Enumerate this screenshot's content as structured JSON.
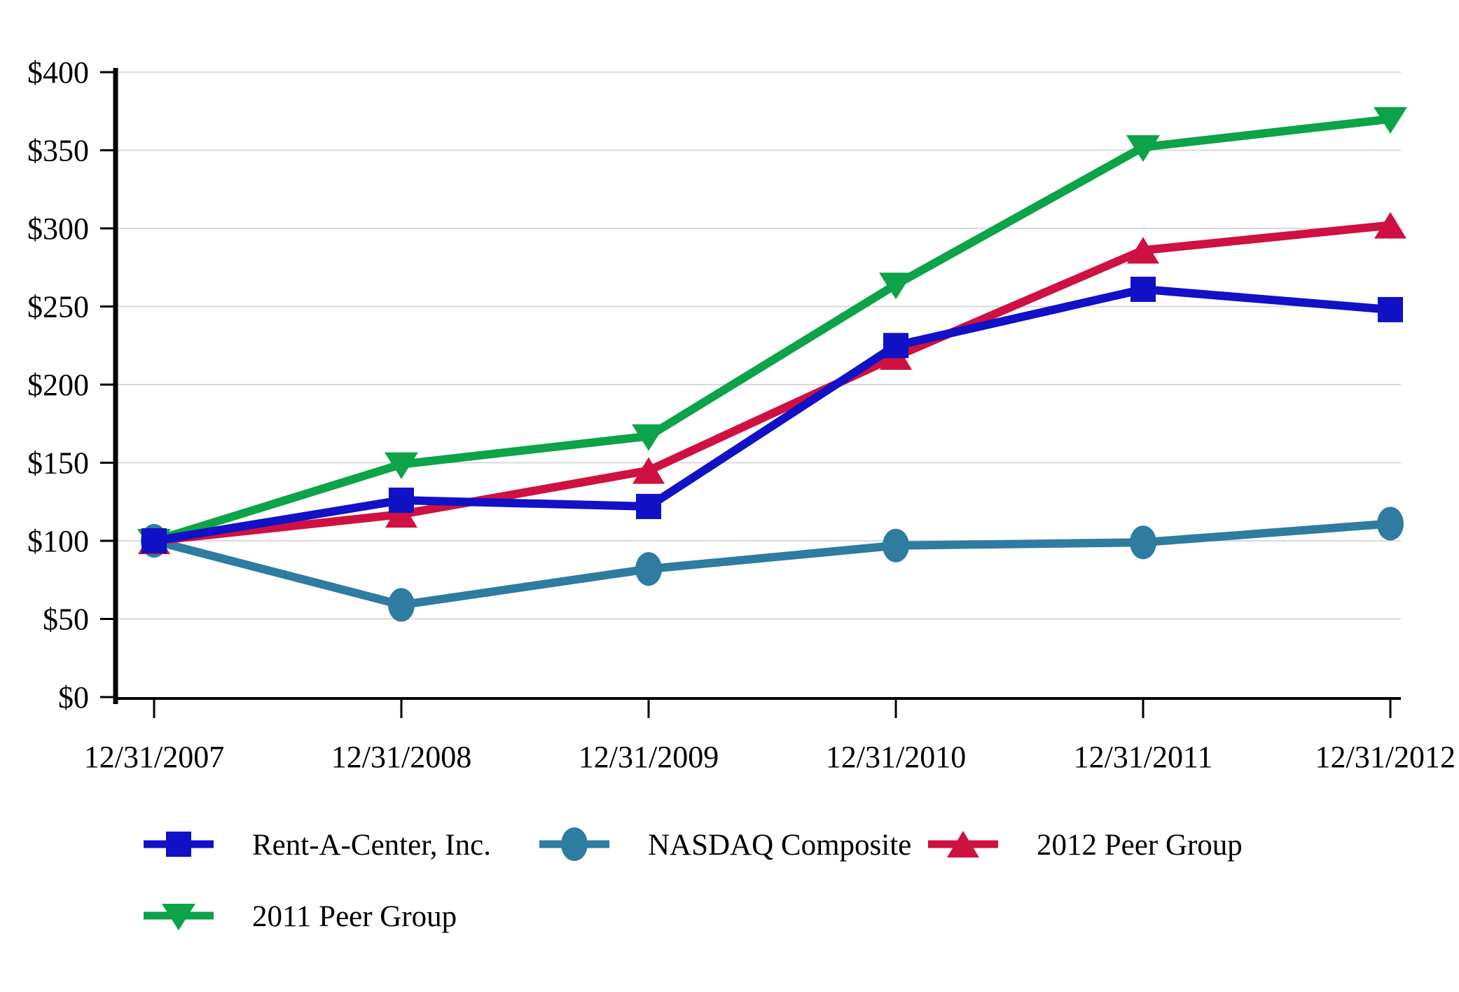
{
  "chart_data": {
    "type": "line",
    "title": "",
    "x_categories": [
      "12/31/2007",
      "12/31/2008",
      "12/31/2009",
      "12/31/2010",
      "12/31/2011",
      "12/31/2012"
    ],
    "y_tick_labels": [
      "$0",
      "$50",
      "$100",
      "$150",
      "$200",
      "$250",
      "$300",
      "$350",
      "$400"
    ],
    "y_tick_values": [
      0,
      50,
      100,
      150,
      200,
      250,
      300,
      350,
      400
    ],
    "ylim": [
      0,
      400
    ],
    "grid": "horizontal-only",
    "legend_position": "bottom-left",
    "background_color": "#FFFFFF",
    "axis_color": "#000000",
    "gridline_color": "#D9D9D9",
    "series": [
      {
        "name": "Rent-A-Center, Inc.",
        "marker": "square",
        "color": "#1111C6",
        "values": [
          100,
          126,
          122,
          225,
          261,
          248
        ]
      },
      {
        "name": "NASDAQ Composite",
        "marker": "circle",
        "color": "#2E7C9F",
        "values": [
          100,
          59,
          82,
          97,
          99,
          111
        ]
      },
      {
        "name": "2012 Peer Group",
        "marker": "triangle-up",
        "color": "#CE1141",
        "values": [
          100,
          117,
          145,
          218,
          286,
          302
        ]
      },
      {
        "name": "2011 Peer Group",
        "marker": "triangle-down",
        "color": "#0CA349",
        "values": [
          100,
          149,
          167,
          264,
          352,
          370
        ]
      }
    ],
    "legend_rows": [
      [
        "Rent-A-Center, Inc.",
        "NASDAQ Composite",
        "2012 Peer Group"
      ],
      [
        "2011 Peer Group"
      ]
    ]
  }
}
